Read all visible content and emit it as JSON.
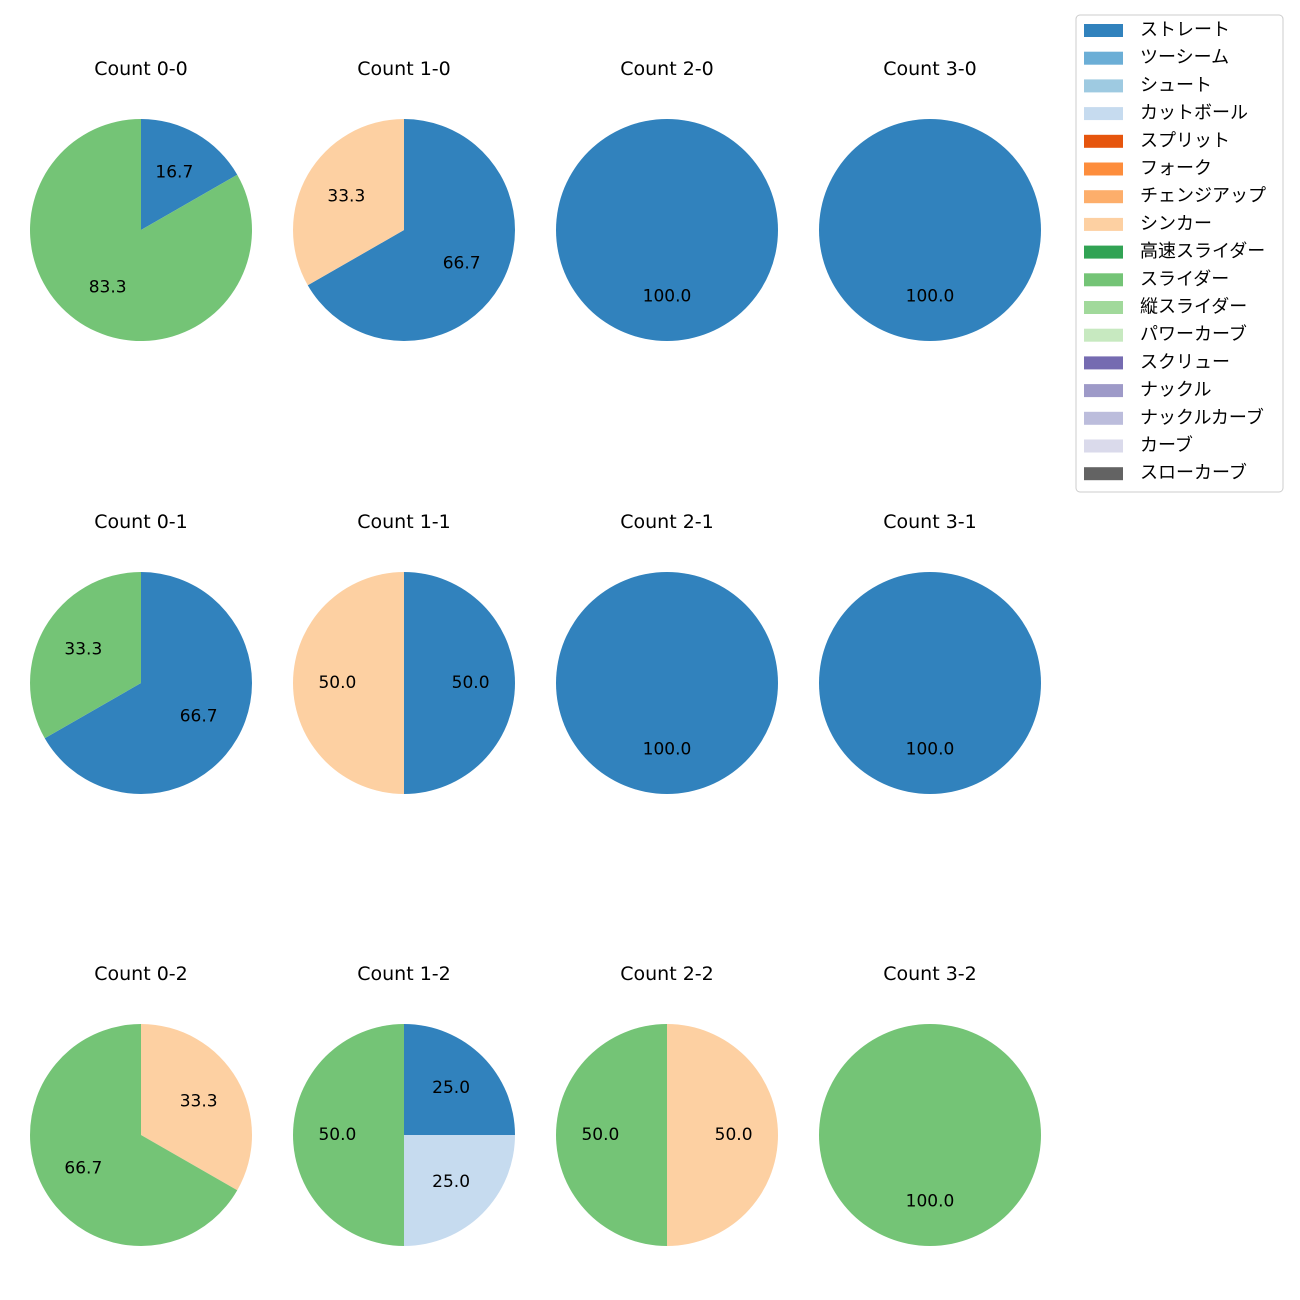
{
  "pitch_types": [
    {
      "name": "ストレート",
      "color": "#3182bd"
    },
    {
      "name": "ツーシーム",
      "color": "#6baed6"
    },
    {
      "name": "シュート",
      "color": "#9ecae1"
    },
    {
      "name": "カットボール",
      "color": "#c6dbef"
    },
    {
      "name": "スプリット",
      "color": "#e6550d"
    },
    {
      "name": "フォーク",
      "color": "#fd8d3c"
    },
    {
      "name": "チェンジアップ",
      "color": "#fdae6b"
    },
    {
      "name": "シンカー",
      "color": "#fdd0a2"
    },
    {
      "name": "高速スライダー",
      "color": "#31a354"
    },
    {
      "name": "スライダー",
      "color": "#74c476"
    },
    {
      "name": "縦スライダー",
      "color": "#a1d99b"
    },
    {
      "name": "パワーカーブ",
      "color": "#c7e9c0"
    },
    {
      "name": "スクリュー",
      "color": "#756bb1"
    },
    {
      "name": "ナックル",
      "color": "#9e9ac8"
    },
    {
      "name": "ナックルカーブ",
      "color": "#bcbddc"
    },
    {
      "name": "カーブ",
      "color": "#dadaeb"
    },
    {
      "name": "スローカーブ",
      "color": "#636363"
    }
  ],
  "chart_data": [
    {
      "type": "pie",
      "title": "Count 0-0",
      "slices": [
        {
          "label": "ストレート",
          "value": 16.7
        },
        {
          "label": "スライダー",
          "value": 83.3
        }
      ]
    },
    {
      "type": "pie",
      "title": "Count 1-0",
      "slices": [
        {
          "label": "ストレート",
          "value": 66.7
        },
        {
          "label": "シンカー",
          "value": 33.3
        }
      ]
    },
    {
      "type": "pie",
      "title": "Count 2-0",
      "slices": [
        {
          "label": "ストレート",
          "value": 100.0
        }
      ]
    },
    {
      "type": "pie",
      "title": "Count 3-0",
      "slices": [
        {
          "label": "ストレート",
          "value": 100.0
        }
      ]
    },
    {
      "type": "pie",
      "title": "Count 0-1",
      "slices": [
        {
          "label": "ストレート",
          "value": 66.7
        },
        {
          "label": "スライダー",
          "value": 33.3
        }
      ]
    },
    {
      "type": "pie",
      "title": "Count 1-1",
      "slices": [
        {
          "label": "ストレート",
          "value": 50.0
        },
        {
          "label": "シンカー",
          "value": 50.0
        }
      ]
    },
    {
      "type": "pie",
      "title": "Count 2-1",
      "slices": [
        {
          "label": "ストレート",
          "value": 100.0
        }
      ]
    },
    {
      "type": "pie",
      "title": "Count 3-1",
      "slices": [
        {
          "label": "ストレート",
          "value": 100.0
        }
      ]
    },
    {
      "type": "pie",
      "title": "Count 0-2",
      "slices": [
        {
          "label": "シンカー",
          "value": 33.3
        },
        {
          "label": "スライダー",
          "value": 66.7
        }
      ]
    },
    {
      "type": "pie",
      "title": "Count 1-2",
      "slices": [
        {
          "label": "ストレート",
          "value": 25.0
        },
        {
          "label": "カットボール",
          "value": 25.0
        },
        {
          "label": "スライダー",
          "value": 50.0
        }
      ]
    },
    {
      "type": "pie",
      "title": "Count 2-2",
      "slices": [
        {
          "label": "シンカー",
          "value": 50.0
        },
        {
          "label": "スライダー",
          "value": 50.0
        }
      ]
    },
    {
      "type": "pie",
      "title": "Count 3-2",
      "slices": [
        {
          "label": "スライダー",
          "value": 100.0
        }
      ]
    }
  ]
}
